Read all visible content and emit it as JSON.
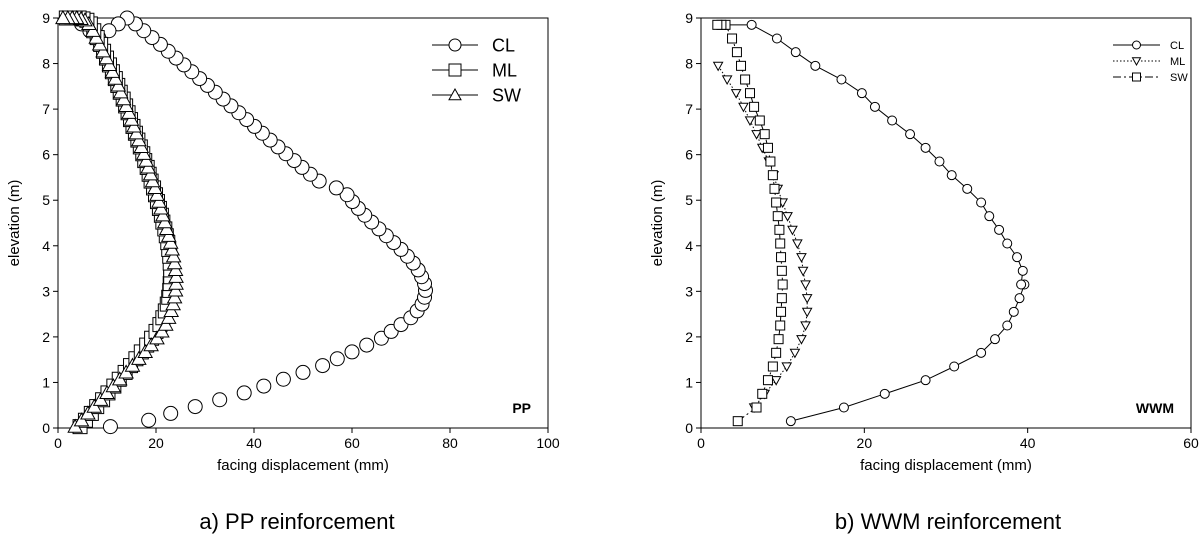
{
  "chart_data": [
    {
      "type": "scatter",
      "caption": "a) PP reinforcement",
      "annotation": "PP",
      "xlabel": "facing displacement (mm)",
      "ylabel": "elevation (m)",
      "xlim": [
        0,
        100
      ],
      "ylim": [
        0,
        9
      ],
      "xticks": [
        0,
        20,
        40,
        60,
        80,
        100
      ],
      "yticks": [
        0,
        1,
        2,
        3,
        4,
        5,
        6,
        7,
        8,
        9
      ],
      "grid": false,
      "legend": "top-right",
      "series": [
        {
          "name": "CL",
          "marker": "circle",
          "x": [
            10.7,
            18.5,
            23,
            28,
            33,
            38,
            42,
            46,
            50,
            54,
            57,
            60,
            63,
            66,
            68,
            70,
            72,
            73.3,
            74.3,
            74.8,
            75,
            74.8,
            74.2,
            73.5,
            72.5,
            71.3,
            70,
            68.5,
            67,
            65.5,
            64,
            62.6,
            61.3,
            60.1,
            59,
            56.8,
            53.3,
            51.5,
            49.8,
            48.2,
            46.5,
            44.9,
            43.3,
            41.7,
            40.1,
            38.5,
            36.9,
            35.3,
            33.7,
            32.1,
            30.5,
            28.9,
            27.3,
            25.7,
            24.1,
            22.5,
            20.9,
            19.2,
            17.5,
            15.8,
            14.1,
            12.3,
            10.4,
            8.3,
            6.5,
            4.8,
            3.2
          ],
          "y": [
            0.03,
            0.17,
            0.32,
            0.47,
            0.62,
            0.77,
            0.92,
            1.07,
            1.22,
            1.37,
            1.52,
            1.67,
            1.82,
            1.97,
            2.12,
            2.27,
            2.42,
            2.57,
            2.72,
            2.87,
            3.02,
            3.17,
            3.32,
            3.47,
            3.62,
            3.77,
            3.92,
            4.07,
            4.22,
            4.37,
            4.52,
            4.67,
            4.82,
            4.97,
            5.12,
            5.27,
            5.42,
            5.57,
            5.72,
            5.87,
            6.02,
            6.17,
            6.32,
            6.47,
            6.62,
            6.77,
            6.92,
            7.07,
            7.22,
            7.37,
            7.52,
            7.67,
            7.82,
            7.97,
            8.12,
            8.27,
            8.42,
            8.57,
            8.72,
            8.87,
            9.0,
            8.87,
            8.72,
            8.57,
            8.72,
            8.87,
            9.0
          ]
        },
        {
          "name": "ML",
          "marker": "square",
          "x": [
            4.5,
            5.6,
            6.8,
            7.9,
            9.1,
            10.2,
            11.4,
            12.5,
            13.7,
            14.8,
            15.9,
            17.0,
            18.1,
            19.1,
            20.0,
            20.8,
            21.4,
            21.9,
            22.3,
            22.6,
            22.8,
            22.9,
            23.0,
            23.0,
            22.9,
            22.8,
            22.6,
            22.4,
            22.1,
            21.8,
            21.4,
            21.1,
            20.7,
            20.3,
            19.9,
            19.5,
            19.0,
            18.6,
            18.2,
            17.7,
            17.3,
            16.8,
            16.3,
            15.8,
            15.3,
            14.8,
            14.3,
            13.8,
            13.3,
            12.7,
            12.2,
            11.7,
            11.1,
            10.5,
            9.9,
            9.3,
            8.7,
            8.0,
            7.3,
            6.6,
            5.9,
            5.1,
            4.3,
            3.5,
            2.6,
            1.7
          ],
          "y": [
            0.03,
            0.17,
            0.32,
            0.47,
            0.62,
            0.77,
            0.92,
            1.07,
            1.22,
            1.37,
            1.52,
            1.67,
            1.82,
            1.97,
            2.12,
            2.27,
            2.42,
            2.57,
            2.72,
            2.87,
            3.02,
            3.17,
            3.32,
            3.47,
            3.62,
            3.77,
            3.92,
            4.07,
            4.22,
            4.37,
            4.52,
            4.67,
            4.82,
            4.97,
            5.12,
            5.27,
            5.42,
            5.57,
            5.72,
            5.87,
            6.02,
            6.17,
            6.32,
            6.47,
            6.62,
            6.77,
            6.92,
            7.07,
            7.22,
            7.37,
            7.52,
            7.67,
            7.82,
            7.97,
            8.12,
            8.27,
            8.42,
            8.57,
            8.72,
            8.87,
            8.95,
            8.98,
            9.0,
            9.0,
            9.0,
            9.0
          ]
        },
        {
          "name": "SW",
          "marker": "triangle-up",
          "x": [
            3.5,
            4.8,
            6.1,
            7.4,
            8.7,
            10.0,
            11.3,
            12.6,
            13.9,
            15.2,
            16.5,
            17.8,
            19.0,
            20.2,
            21.2,
            22.0,
            22.6,
            23.1,
            23.5,
            23.8,
            24.0,
            24.1,
            24.1,
            24.0,
            23.8,
            23.6,
            23.3,
            23.0,
            22.6,
            22.2,
            21.8,
            21.4,
            21.0,
            20.6,
            20.2,
            19.8,
            19.3,
            18.9,
            18.4,
            18.0,
            17.5,
            17.0,
            16.5,
            16.0,
            15.5,
            15.0,
            14.5,
            13.9,
            13.4,
            12.8,
            12.3,
            11.7,
            11.1,
            10.5,
            9.9,
            9.2,
            8.5,
            7.8,
            7.1,
            6.3,
            5.5,
            4.7,
            3.8,
            2.9,
            2.0,
            1.0
          ],
          "y": [
            0.03,
            0.17,
            0.32,
            0.47,
            0.62,
            0.77,
            0.92,
            1.07,
            1.22,
            1.37,
            1.52,
            1.67,
            1.82,
            1.97,
            2.12,
            2.27,
            2.42,
            2.57,
            2.72,
            2.87,
            3.02,
            3.17,
            3.32,
            3.47,
            3.62,
            3.77,
            3.92,
            4.07,
            4.22,
            4.37,
            4.52,
            4.67,
            4.82,
            4.97,
            5.12,
            5.27,
            5.42,
            5.57,
            5.72,
            5.87,
            6.02,
            6.17,
            6.32,
            6.47,
            6.62,
            6.77,
            6.92,
            7.07,
            7.22,
            7.37,
            7.52,
            7.67,
            7.82,
            7.97,
            8.12,
            8.27,
            8.42,
            8.57,
            8.72,
            8.87,
            8.95,
            8.98,
            9.0,
            9.0,
            9.0,
            9.0
          ]
        }
      ]
    },
    {
      "type": "line",
      "caption": "b) WWM reinforcement",
      "annotation": "WWM",
      "xlabel": "facing displacement (mm)",
      "ylabel": "elevation (m)",
      "xlim": [
        0,
        60
      ],
      "ylim": [
        0,
        9
      ],
      "xticks": [
        0,
        20,
        40,
        60
      ],
      "yticks": [
        0,
        1,
        2,
        3,
        4,
        5,
        6,
        7,
        8,
        9
      ],
      "grid": false,
      "legend": "top-right",
      "series": [
        {
          "name": "CL",
          "marker": "circle",
          "line": "solid",
          "x": [
            11.0,
            17.5,
            22.5,
            27.5,
            31.0,
            34.3,
            36.0,
            37.5,
            38.3,
            39.0,
            39.6,
            39.2,
            39.4,
            38.7,
            37.5,
            36.5,
            35.3,
            34.3,
            32.6,
            30.7,
            29.2,
            27.5,
            25.6,
            23.4,
            21.3,
            19.7,
            17.2,
            14.0,
            11.6,
            9.3,
            6.2,
            3.0
          ],
          "y": [
            0.15,
            0.45,
            0.75,
            1.05,
            1.35,
            1.65,
            1.95,
            2.25,
            2.55,
            2.85,
            3.15,
            3.15,
            3.45,
            3.75,
            4.05,
            4.35,
            4.65,
            4.95,
            5.25,
            5.55,
            5.85,
            6.15,
            6.45,
            6.75,
            7.05,
            7.35,
            7.65,
            7.95,
            8.25,
            8.55,
            8.85,
            8.85
          ]
        },
        {
          "name": "ML",
          "marker": "triangle-down",
          "line": "dotted",
          "x": [
            6.5,
            7.8,
            9.2,
            10.5,
            11.5,
            12.3,
            12.8,
            13.0,
            13.0,
            12.8,
            12.5,
            12.3,
            11.8,
            11.2,
            10.6,
            10.0,
            9.4,
            8.9,
            8.3,
            7.5,
            6.8,
            6.0,
            5.2,
            4.3,
            3.2,
            2.1
          ],
          "y": [
            0.45,
            0.75,
            1.05,
            1.35,
            1.65,
            1.95,
            2.25,
            2.55,
            2.85,
            3.15,
            3.45,
            3.75,
            4.05,
            4.35,
            4.65,
            4.95,
            5.25,
            5.55,
            5.85,
            6.15,
            6.45,
            6.75,
            7.05,
            7.35,
            7.65,
            7.95
          ]
        },
        {
          "name": "SW",
          "marker": "square",
          "line": "dash-dot",
          "x": [
            4.5,
            6.8,
            7.5,
            8.2,
            8.8,
            9.2,
            9.5,
            9.7,
            9.8,
            9.9,
            10.0,
            9.9,
            9.8,
            9.7,
            9.6,
            9.4,
            9.2,
            9.0,
            8.8,
            8.5,
            8.2,
            7.8,
            7.2,
            6.5,
            6.0,
            5.4,
            4.9,
            4.4,
            3.8,
            3.0,
            2.5,
            2.0
          ],
          "y": [
            0.15,
            0.45,
            0.75,
            1.05,
            1.35,
            1.65,
            1.95,
            2.25,
            2.55,
            2.85,
            3.15,
            3.45,
            3.75,
            4.05,
            4.35,
            4.65,
            4.95,
            5.25,
            5.55,
            5.85,
            6.15,
            6.45,
            6.75,
            7.05,
            7.35,
            7.65,
            7.95,
            8.25,
            8.55,
            8.85,
            8.85,
            8.85
          ]
        }
      ]
    }
  ]
}
